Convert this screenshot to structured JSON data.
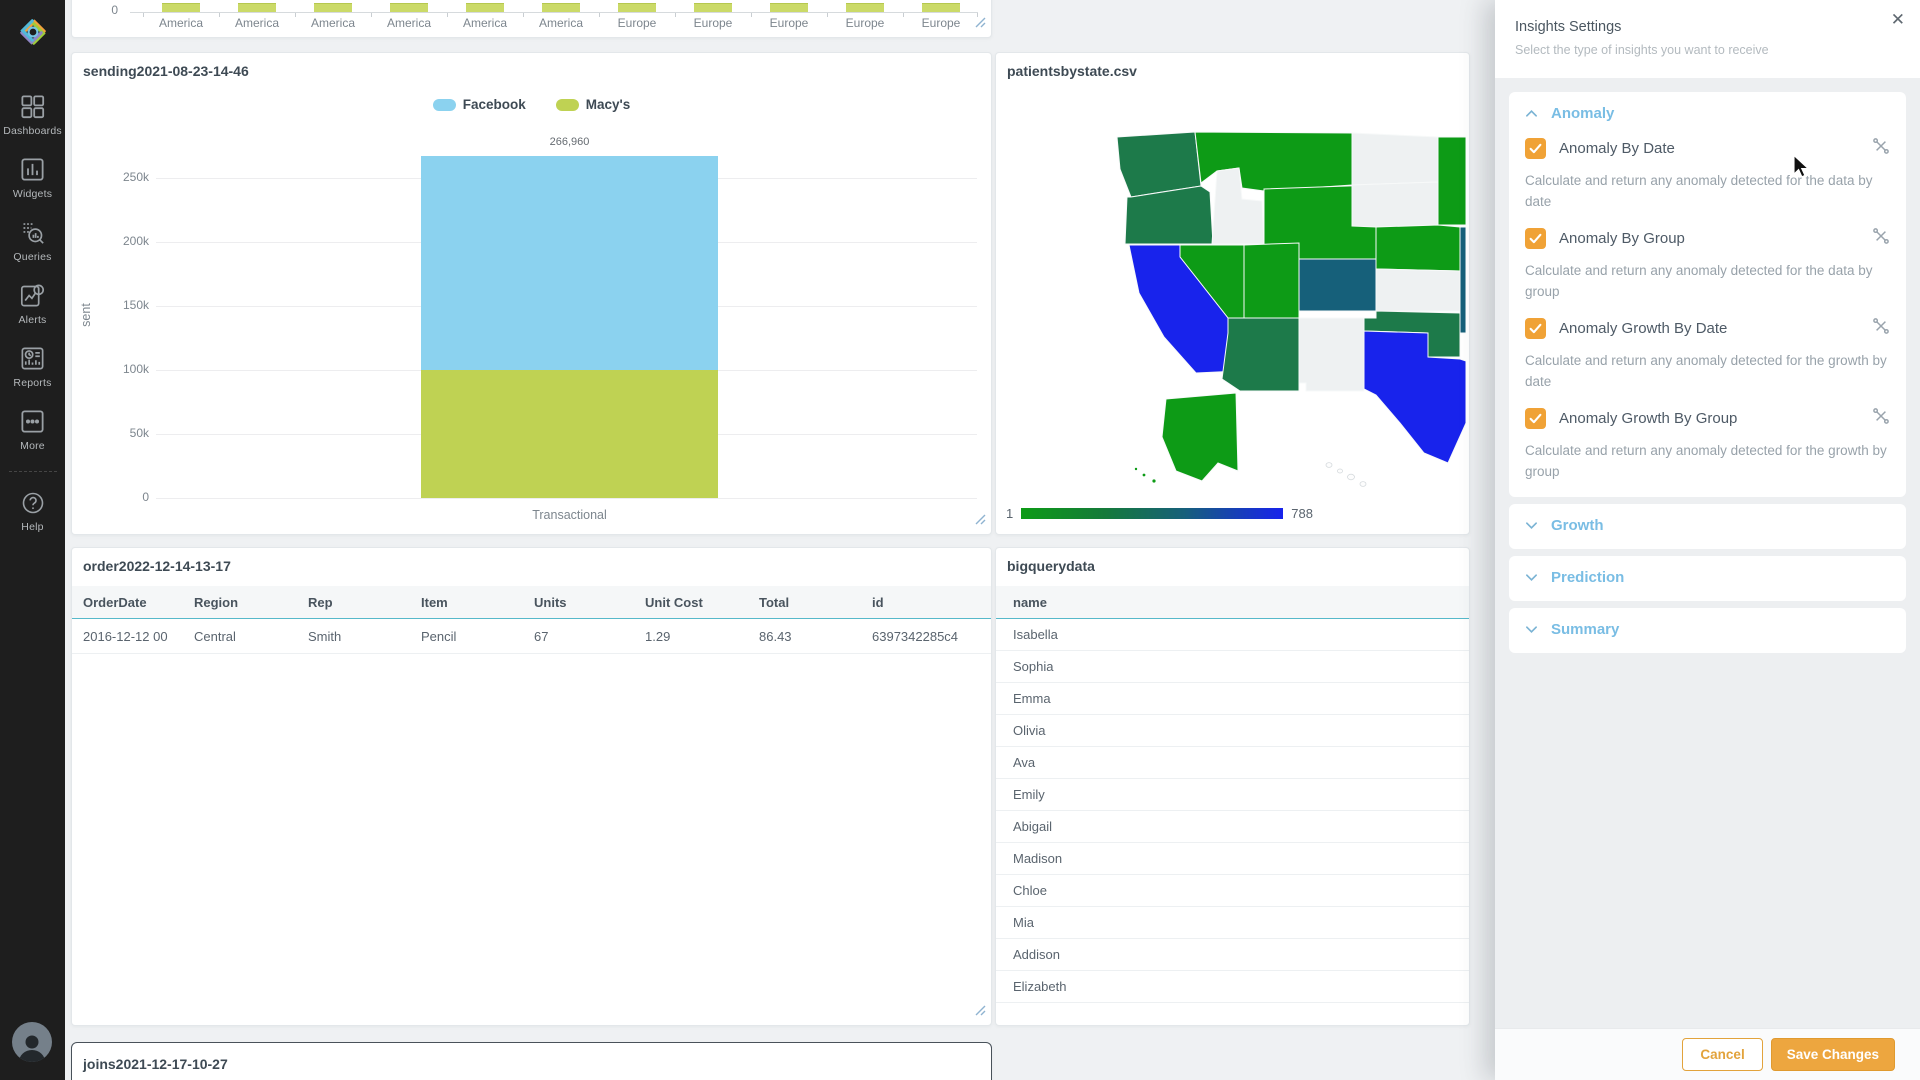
{
  "sidebar": {
    "items": [
      {
        "id": "dashboards",
        "label": "Dashboards"
      },
      {
        "id": "widgets",
        "label": "Widgets"
      },
      {
        "id": "queries",
        "label": "Queries"
      },
      {
        "id": "alerts",
        "label": "Alerts"
      },
      {
        "id": "reports",
        "label": "Reports"
      },
      {
        "id": "more",
        "label": "More"
      }
    ],
    "help_label": "Help"
  },
  "widgets": {
    "top_chart": {
      "y_zero_label": "0",
      "categories": [
        "America",
        "America",
        "America",
        "America",
        "America",
        "America",
        "Europe",
        "Europe",
        "Europe",
        "Europe",
        "Europe"
      ],
      "bar_color": "#cbda68"
    },
    "sending": {
      "title": "sending2021-08-23-14-46",
      "legend": [
        {
          "label": "Facebook",
          "color": "#8bd2ef"
        },
        {
          "label": "Macy's",
          "color": "#bfd253"
        }
      ],
      "ylabel": "sent",
      "ytick_labels": [
        "0",
        "50k",
        "100k",
        "150k",
        "200k",
        "250k"
      ],
      "xtick": "Transactional",
      "total_label": "266,960"
    },
    "map": {
      "title": "patientsbystate.csv",
      "legend_min": "1",
      "legend_max": "788",
      "palette": {
        "green": "#0d9b16",
        "dark-green": "#1d7a4a",
        "teal": "#16607a",
        "blue": "#1823ec",
        "none": "#eef1f2"
      }
    },
    "order": {
      "title": "order2022-12-14-13-17",
      "columns": [
        "OrderDate",
        "Region",
        "Rep",
        "Item",
        "Units",
        "Unit Cost",
        "Total",
        "id"
      ],
      "rows": [
        [
          "2016-12-12 00",
          "Central",
          "Smith",
          "Pencil",
          "67",
          "1.29",
          "86.43",
          "6397342285c4"
        ]
      ]
    },
    "bigquery": {
      "title": "bigquerydata",
      "columns": [
        "name"
      ],
      "rows": [
        "Isabella",
        "Sophia",
        "Emma",
        "Olivia",
        "Ava",
        "Emily",
        "Abigail",
        "Madison",
        "Chloe",
        "Mia",
        "Addison",
        "Elizabeth"
      ]
    },
    "joins": {
      "title": "joins2021-12-17-10-27"
    }
  },
  "insights_panel": {
    "title": "Insights Settings",
    "subtitle": "Select the type of insights you want to receive",
    "close_label": "✕",
    "sections": [
      {
        "label": "Anomaly",
        "expanded": true,
        "items": [
          {
            "label": "Anomaly By Date",
            "checked": true,
            "description": "Calculate and return any anomaly detected for the data by date"
          },
          {
            "label": "Anomaly By Group",
            "checked": true,
            "description": "Calculate and return any anomaly detected for the data by group"
          },
          {
            "label": "Anomaly Growth By Date",
            "checked": true,
            "description": "Calculate and return any anomaly detected for the growth by date"
          },
          {
            "label": "Anomaly Growth By Group",
            "checked": true,
            "description": "Calculate and return any anomaly detected for the growth by group"
          }
        ]
      },
      {
        "label": "Growth",
        "expanded": false,
        "items": []
      },
      {
        "label": "Prediction",
        "expanded": false,
        "items": []
      },
      {
        "label": "Summary",
        "expanded": false,
        "items": []
      }
    ],
    "cancel_label": "Cancel",
    "save_label": "Save Changes",
    "accent_orange": "#eda63f",
    "section_label_color": "#79bde4"
  },
  "chart_data": [
    {
      "id": "top-partial-chart",
      "type": "bar",
      "title": "",
      "categories": [
        "America",
        "America",
        "America",
        "America",
        "America",
        "America",
        "Europe",
        "Europe",
        "Europe",
        "Europe",
        "Europe"
      ],
      "values": [
        null,
        null,
        null,
        null,
        null,
        null,
        null,
        null,
        null,
        null,
        null
      ],
      "note": "widget is scrolled so only the x-axis, category labels and green bar bases are visible"
    },
    {
      "id": "sending-chart",
      "type": "bar",
      "stacked": true,
      "title": "sending2021-08-23-14-46",
      "categories": [
        "Transactional"
      ],
      "series": [
        {
          "name": "Facebook",
          "color": "#8bd2ef",
          "values": [
            166960
          ]
        },
        {
          "name": "Macy's",
          "color": "#bfd253",
          "values": [
            100000
          ]
        }
      ],
      "stack_total_label": "266,960",
      "xlabel": "",
      "ylabel": "sent",
      "ylim": [
        0,
        275000
      ],
      "yticks": [
        0,
        50000,
        100000,
        150000,
        200000,
        250000
      ],
      "legend_position": "top-center",
      "grid": true,
      "note": "labeled stack total is 266,960; per-series split estimated from pixel heights"
    },
    {
      "id": "patients-by-state-map",
      "type": "heatmap",
      "subtype": "choropleth",
      "title": "patientsbystate.csv",
      "colorbar": {
        "min": 1,
        "max": 788,
        "gradient": [
          "#0d9b16",
          "#16607a",
          "#1823ec"
        ]
      },
      "state_shades": {
        "WA": "dark-green",
        "OR": "dark-green",
        "CA": "blue",
        "ID": "none",
        "MT": "green",
        "WY": "green",
        "NV": "green",
        "UT": "green",
        "CO": "teal",
        "AZ": "dark-green",
        "NM": "none",
        "TX": "blue",
        "OK": "dark-green",
        "KS": "none",
        "NE": "green",
        "SD": "none",
        "ND": "none",
        "MN": "green",
        "MO": "teal",
        "AK": "green",
        "HI": "none"
      },
      "note": "individual state values are not labeled in the screenshot"
    },
    {
      "id": "order-table",
      "type": "table",
      "title": "order2022-12-14-13-17",
      "columns": [
        "OrderDate",
        "Region",
        "Rep",
        "Item",
        "Units",
        "Unit Cost",
        "Total",
        "id"
      ],
      "rows": [
        [
          "2016-12-12 00",
          "Central",
          "Smith",
          "Pencil",
          "67",
          "1.29",
          "86.43",
          "6397342285c4"
        ]
      ]
    },
    {
      "id": "bigquery-table",
      "type": "table",
      "title": "bigquerydata",
      "columns": [
        "name"
      ],
      "rows": [
        [
          "Isabella"
        ],
        [
          "Sophia"
        ],
        [
          "Emma"
        ],
        [
          "Olivia"
        ],
        [
          "Ava"
        ],
        [
          "Emily"
        ],
        [
          "Abigail"
        ],
        [
          "Madison"
        ],
        [
          "Chloe"
        ],
        [
          "Mia"
        ],
        [
          "Addison"
        ],
        [
          "Elizabeth"
        ]
      ]
    }
  ]
}
